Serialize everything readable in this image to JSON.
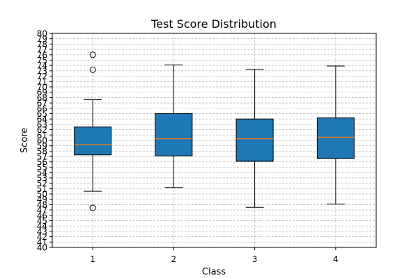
{
  "chart_data": {
    "type": "box",
    "title": "Test Score Distribution",
    "xlabel": "Class",
    "ylabel": "Score",
    "ylim": [
      40,
      80
    ],
    "yticks": [
      40,
      41,
      42,
      43,
      44,
      45,
      46,
      47,
      48,
      49,
      50,
      51,
      52,
      53,
      54,
      55,
      56,
      57,
      58,
      59,
      60,
      61,
      62,
      63,
      64,
      65,
      66,
      67,
      68,
      69,
      70,
      71,
      72,
      73,
      74,
      75,
      76,
      77,
      78,
      79,
      80
    ],
    "grid": true,
    "categories": [
      "1",
      "2",
      "3",
      "4"
    ],
    "boxes": [
      {
        "whisker_low": 50.5,
        "q1": 57.3,
        "median": 59.2,
        "q3": 62.5,
        "whisker_high": 67.6,
        "outliers": [
          76.0,
          73.2,
          47.4
        ]
      },
      {
        "whisker_low": 51.2,
        "q1": 57.1,
        "median": 60.3,
        "q3": 65.0,
        "whisker_high": 74.1
      },
      {
        "whisker_low": 47.5,
        "q1": 56.1,
        "median": 60.3,
        "q3": 64.0,
        "whisker_high": 73.3
      },
      {
        "whisker_low": 48.1,
        "q1": 56.6,
        "median": 60.6,
        "q3": 64.2,
        "whisker_high": 73.9
      }
    ],
    "colors": {
      "box_fill": "#1f77b4",
      "median": "#ff7f0e",
      "grid": "#b0b0b0"
    }
  }
}
